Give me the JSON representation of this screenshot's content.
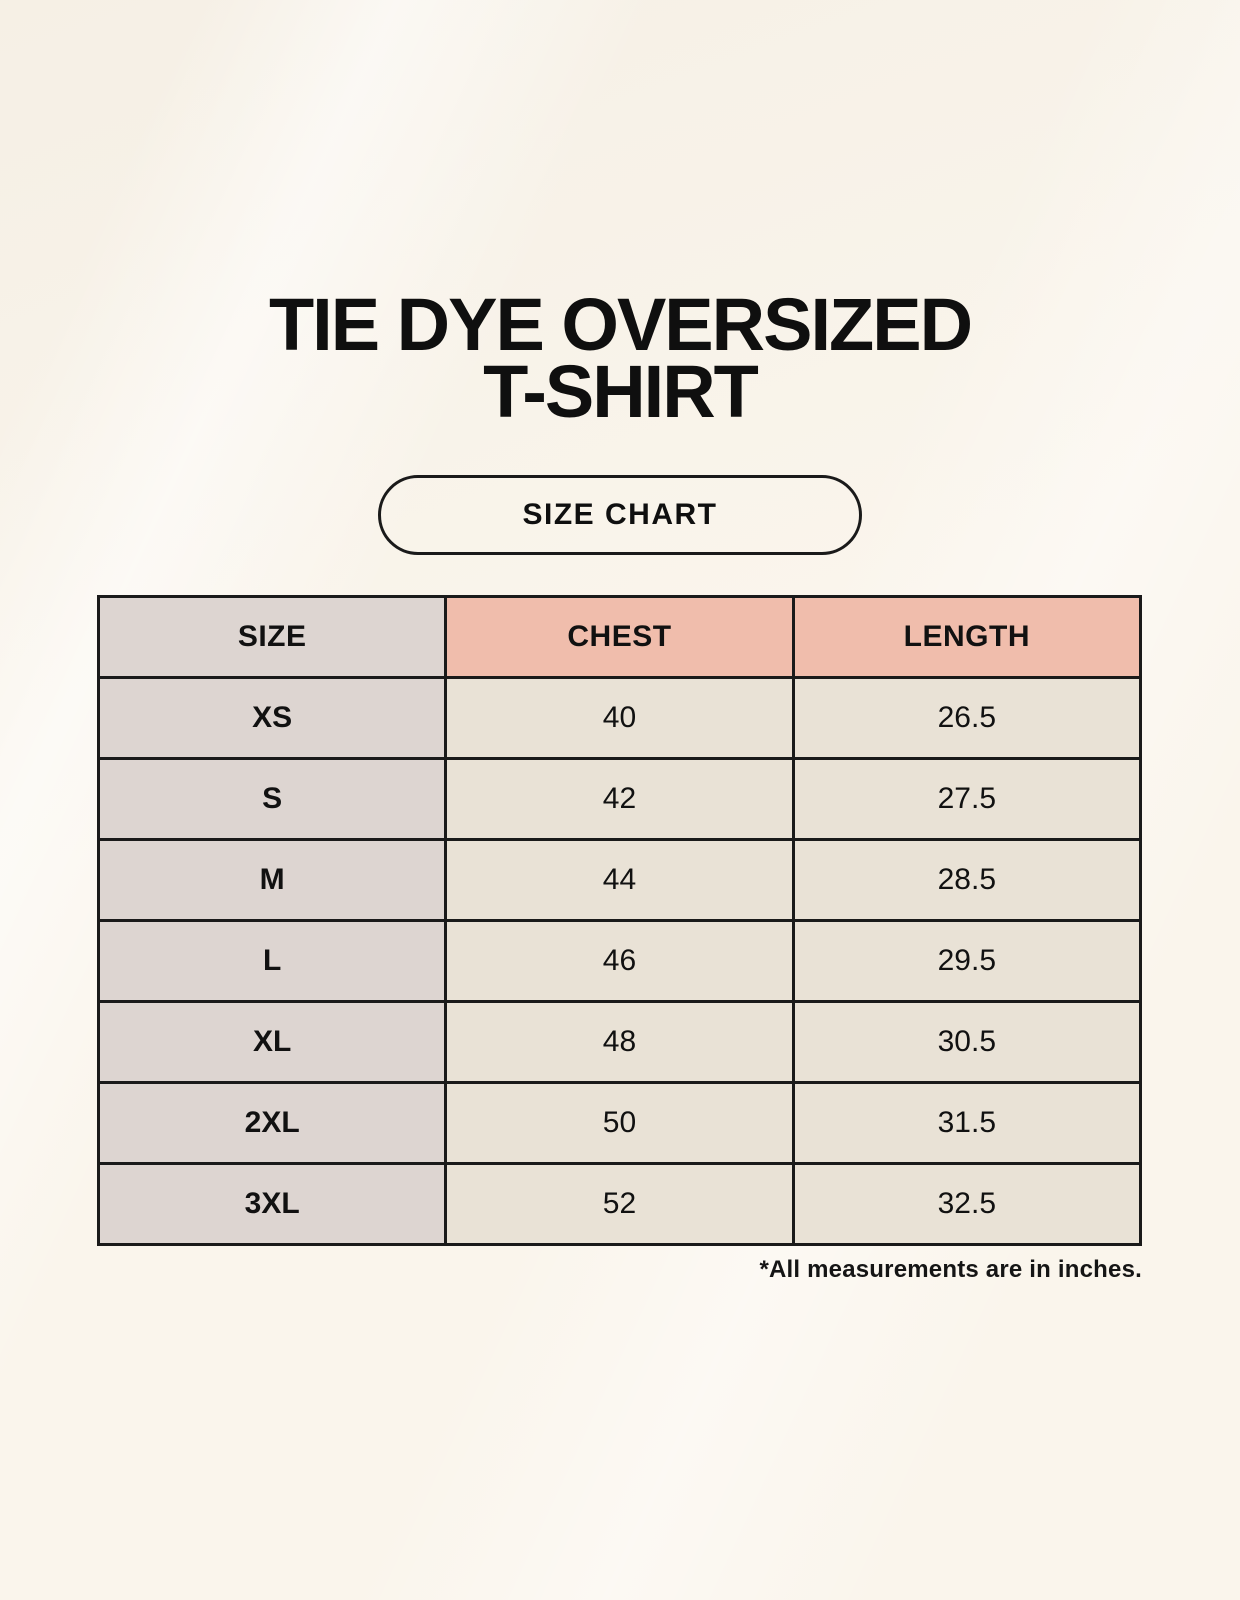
{
  "page": {
    "title_line1": "TIE DYE OVERSIZED",
    "title_line2": "T-SHIRT",
    "badge_label": "SIZE CHART",
    "footnote": "*All measurements are in inches."
  },
  "chart_data": {
    "type": "table",
    "title": "TIE DYE OVERSIZED T-SHIRT",
    "columns": [
      "SIZE",
      "CHEST",
      "LENGTH"
    ],
    "rows": [
      [
        "XS",
        "40",
        "26.5"
      ],
      [
        "S",
        "42",
        "27.5"
      ],
      [
        "M",
        "44",
        "28.5"
      ],
      [
        "L",
        "46",
        "29.5"
      ],
      [
        "XL",
        "48",
        "30.5"
      ],
      [
        "2XL",
        "50",
        "31.5"
      ],
      [
        "3XL",
        "52",
        "32.5"
      ]
    ],
    "note": "*All measurements are in inches.",
    "units": "inches"
  },
  "colors": {
    "background": "#faf5ec",
    "size_column_bg": "#ddd5d1",
    "header_accent_bg": "#f0bdac",
    "data_cell_bg": "#e9e2d6",
    "border": "#1a1a1a",
    "text": "#111111"
  }
}
